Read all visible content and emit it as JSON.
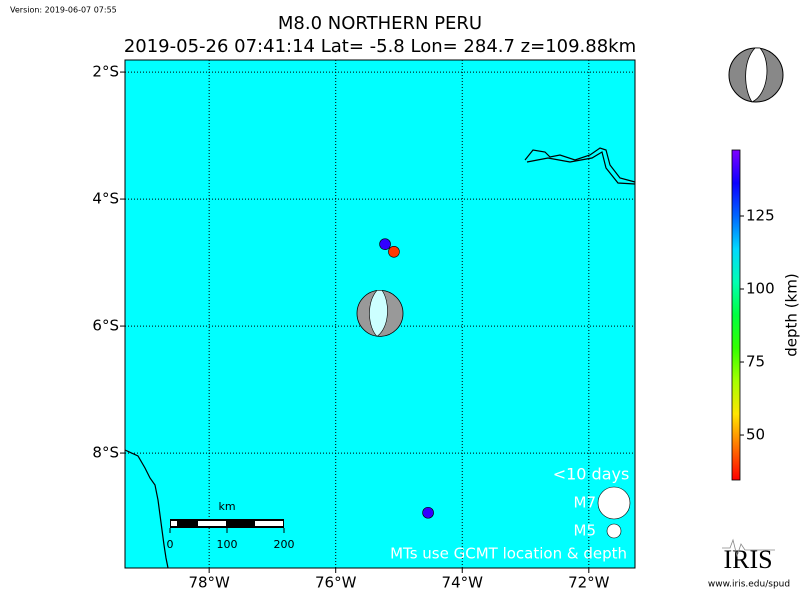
{
  "chart_data": {
    "type": "map",
    "version": "Version: 2019-06-07 07:55",
    "title": "M8.0 NORTHERN PERU",
    "subtitle": "2019-05-26 07:41:14 Lat= -5.8 Lon= 284.7 z=109.88km",
    "xlim": [
      -79.33,
      -71.27
    ],
    "ylim": [
      -9.81,
      -1.81
    ],
    "xticks": [
      {
        "value": -78,
        "label": "78°W"
      },
      {
        "value": -76,
        "label": "76°W"
      },
      {
        "value": -74,
        "label": "74°W"
      },
      {
        "value": -72,
        "label": "72°W"
      }
    ],
    "yticks": [
      {
        "value": -2,
        "label": "2°S"
      },
      {
        "value": -4,
        "label": "4°S"
      },
      {
        "value": -6,
        "label": "6°S"
      },
      {
        "value": -8,
        "label": "8°S"
      }
    ],
    "grid": true,
    "background": "#00ffff",
    "events": [
      {
        "lon": -75.22,
        "lat": -4.71,
        "depth": 140
      },
      {
        "lon": -75.08,
        "lat": -4.83,
        "depth": 40
      },
      {
        "lon": -74.54,
        "lat": -8.94,
        "depth": 140
      }
    ],
    "mechanism": {
      "lon": -75.3,
      "lat": -5.8
    },
    "colorbar": {
      "label": "depth (km)",
      "lim": [
        34.6,
        147.6
      ],
      "ticks": [
        50,
        75,
        100,
        125
      ]
    },
    "scale_bar": {
      "label": "km",
      "ticks": [
        0,
        100,
        200
      ]
    },
    "legend": {
      "title": "<10 days",
      "entries": [
        "M7",
        "M5"
      ]
    },
    "footnote": "MTs use GCMT location & depth",
    "logo": {
      "name": "IRIS",
      "url": "www.iris.edu/spud"
    }
  }
}
